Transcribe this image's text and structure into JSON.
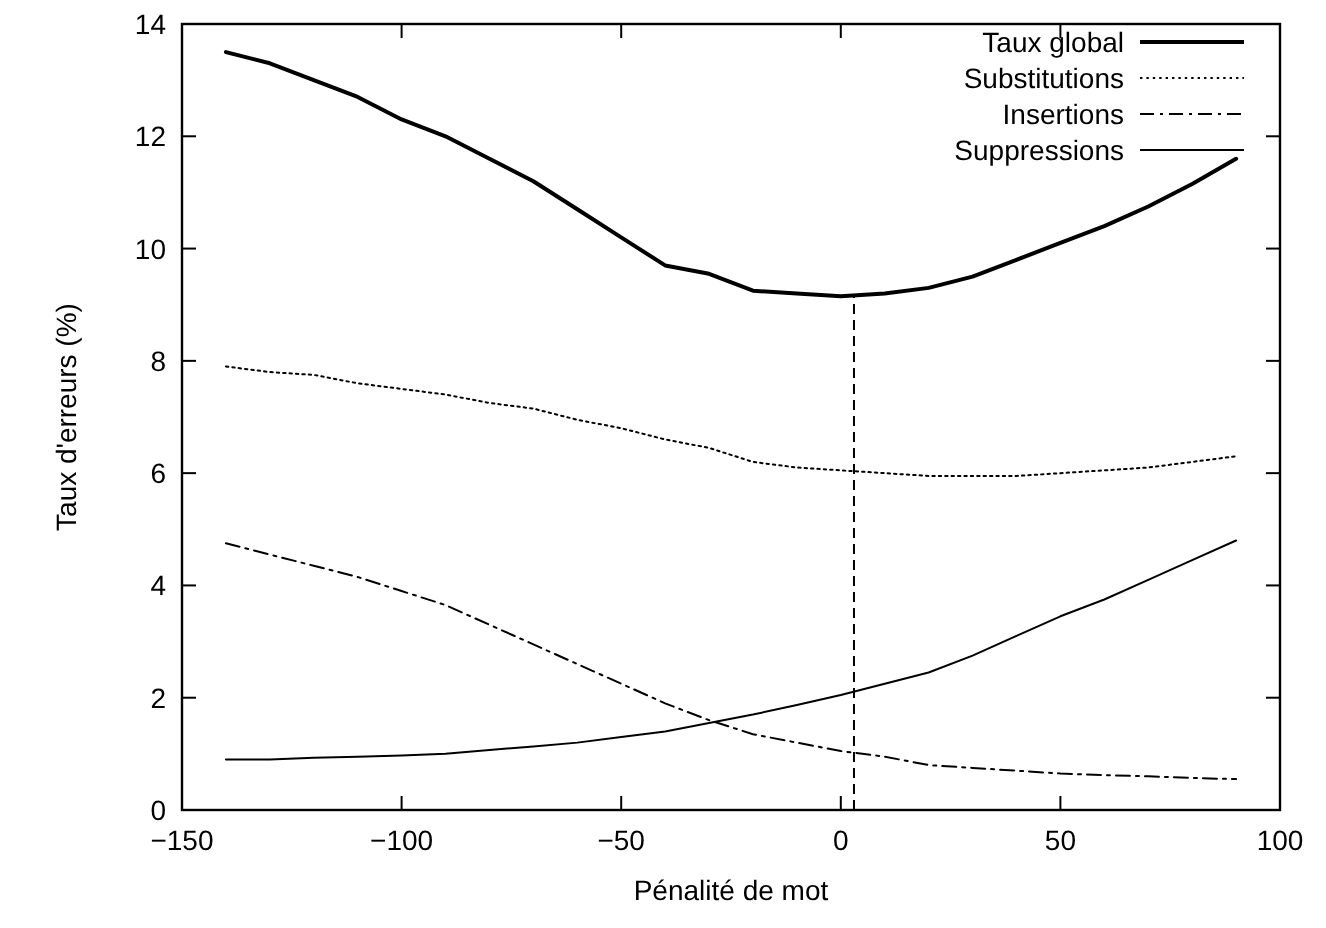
{
  "chart_data": {
    "type": "line",
    "xlabel": "Pénalité de mot",
    "ylabel": "Taux d'erreurs (%)",
    "x": [
      -140,
      -130,
      -120,
      -110,
      -100,
      -90,
      -80,
      -70,
      -60,
      -50,
      -40,
      -30,
      -20,
      -10,
      0,
      10,
      20,
      30,
      40,
      50,
      60,
      70,
      80,
      90
    ],
    "series": [
      {
        "name": "Taux global",
        "color": "#000000",
        "line_style": "solid",
        "values": [
          13.5,
          13.3,
          13.0,
          12.7,
          12.3,
          12.0,
          11.6,
          11.2,
          10.7,
          10.2,
          9.7,
          9.55,
          9.25,
          9.2,
          9.15,
          9.2,
          9.3,
          9.5,
          9.8,
          10.1,
          10.4,
          10.75,
          11.15,
          11.6
        ]
      },
      {
        "name": "Substitutions",
        "color": "#000000",
        "line_style": "dotted",
        "values": [
          7.9,
          7.8,
          7.75,
          7.6,
          7.5,
          7.4,
          7.25,
          7.15,
          6.95,
          6.8,
          6.6,
          6.45,
          6.2,
          6.1,
          6.05,
          6.0,
          5.95,
          5.95,
          5.95,
          6.0,
          6.05,
          6.1,
          6.2,
          6.3
        ]
      },
      {
        "name": "Insertions",
        "color": "#000000",
        "line_style": "dashed",
        "values": [
          4.75,
          4.55,
          4.35,
          4.15,
          3.9,
          3.65,
          3.3,
          2.95,
          2.6,
          2.25,
          1.9,
          1.6,
          1.35,
          1.2,
          1.05,
          0.95,
          0.8,
          0.75,
          0.7,
          0.65,
          0.62,
          0.6,
          0.57,
          0.55
        ]
      },
      {
        "name": "Suppressions",
        "color": "#000000",
        "line_style": "solid",
        "values": [
          0.9,
          0.9,
          0.93,
          0.95,
          0.97,
          1.0,
          1.07,
          1.13,
          1.2,
          1.3,
          1.4,
          1.55,
          1.7,
          1.87,
          2.05,
          2.25,
          2.45,
          2.75,
          3.1,
          3.45,
          3.75,
          4.1,
          4.45,
          4.8
        ]
      }
    ],
    "xlim": [
      -150,
      100
    ],
    "xticks": [
      -150,
      -100,
      -50,
      0,
      50,
      100
    ],
    "ylim": [
      0,
      14
    ],
    "yticks": [
      0,
      2,
      4,
      6,
      8,
      10,
      12,
      14
    ],
    "ref_lines": [
      {
        "axis": "x",
        "value": 3,
        "color": "#000000",
        "line_style": "dashed"
      }
    ],
    "grid": false,
    "legend": "top right",
    "marker": "none"
  }
}
